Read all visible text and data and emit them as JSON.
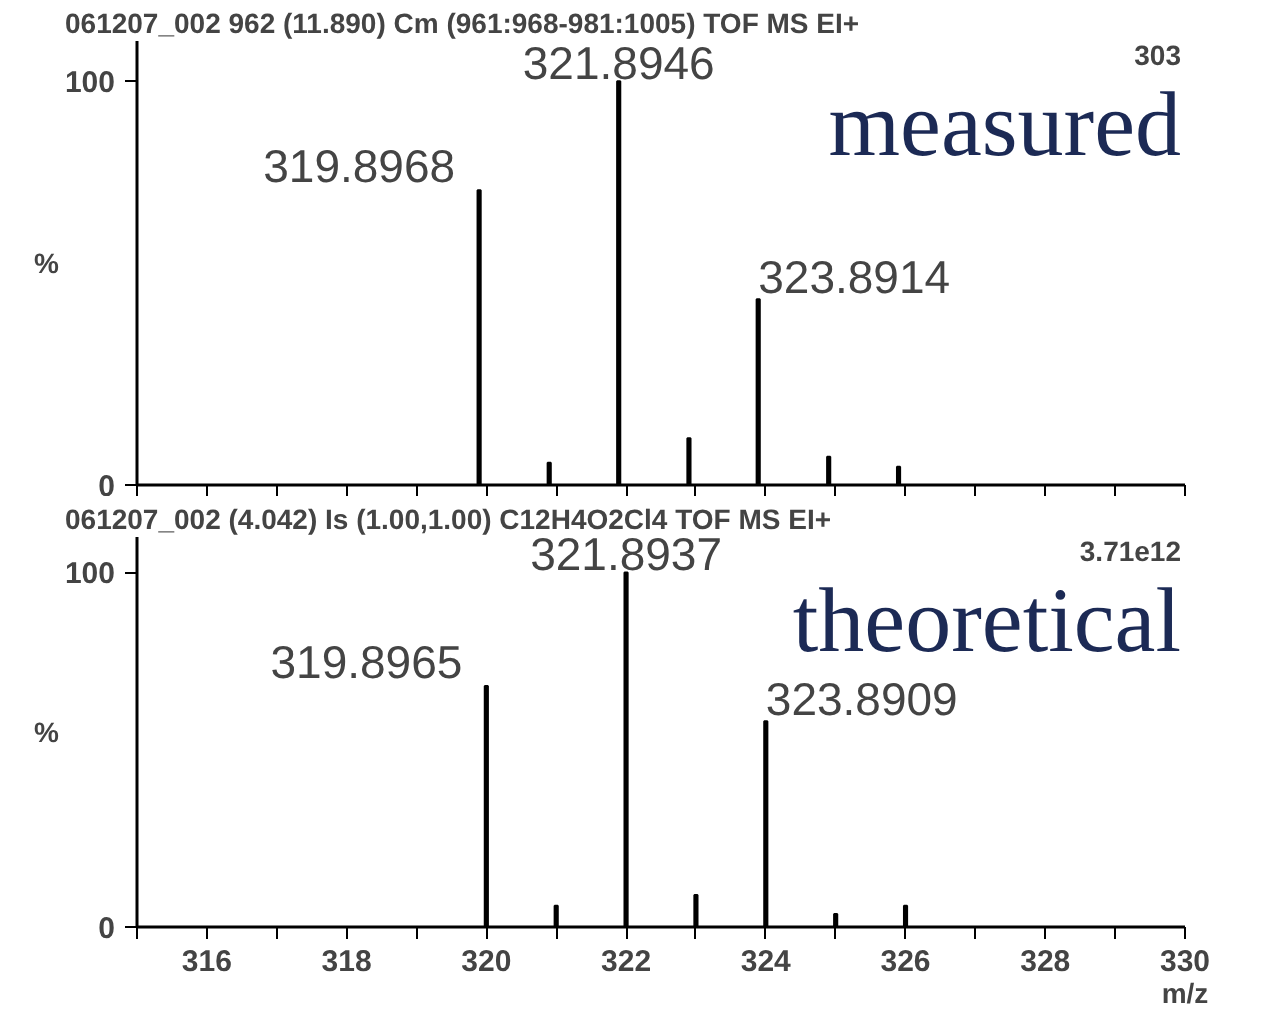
{
  "chart_data": [
    {
      "type": "bar",
      "title": "061207_002 962 (11.890) Cm (961:968-981:1005)  TOF MS EI+",
      "ylabel": "%",
      "x": [
        319.8968,
        320.9,
        321.8946,
        322.9,
        323.8914,
        324.9,
        325.9
      ],
      "values": [
        73,
        5.5,
        100,
        11.6,
        46,
        7,
        4.5
      ],
      "color": "#000000",
      "xlim": [
        315,
        330
      ],
      "xticks": [
        {
          "value": 315,
          "label": null
        },
        {
          "value": 316,
          "label": null
        },
        {
          "value": 317,
          "label": null
        },
        {
          "value": 318,
          "label": null
        },
        {
          "value": 319,
          "label": null
        },
        {
          "value": 320,
          "label": null
        },
        {
          "value": 321,
          "label": null
        },
        {
          "value": 322,
          "label": null
        },
        {
          "value": 323,
          "label": null
        },
        {
          "value": 324,
          "label": null
        },
        {
          "value": 325,
          "label": null
        },
        {
          "value": 326,
          "label": null
        },
        {
          "value": 327,
          "label": null
        },
        {
          "value": 328,
          "label": null
        },
        {
          "value": 329,
          "label": null
        },
        {
          "value": 330,
          "label": null
        }
      ],
      "ylim": [
        0,
        110
      ],
      "yticks": [
        0,
        100
      ],
      "tick_labels": "y",
      "grid": false,
      "annotations": [
        {
          "text": "319.8968",
          "x": 319.8968,
          "y": 73
        },
        {
          "text": "321.8946",
          "x": 321.8946,
          "y": 100
        },
        {
          "text": "323.8914",
          "x": 323.8914,
          "y": 46
        },
        "303",
        "measured"
      ]
    },
    {
      "type": "bar",
      "title": "061207_002  (4.042) Is (1.00,1.00) C12H4O2Cl4     TOF MS EI+",
      "ylabel": "%",
      "xlabel": "m/z",
      "x": [
        320,
        321,
        322,
        323,
        324,
        325,
        326
      ],
      "values": [
        68,
        6,
        100,
        9,
        58,
        3.7,
        6
      ],
      "color": "#000000",
      "xlim": [
        315,
        330
      ],
      "xticks": [
        {
          "value": 315,
          "label": null
        },
        {
          "value": 316,
          "label": "316"
        },
        {
          "value": 317,
          "label": null
        },
        {
          "value": 318,
          "label": "318"
        },
        {
          "value": 319,
          "label": null
        },
        {
          "value": 320,
          "label": "320"
        },
        {
          "value": 321,
          "label": null
        },
        {
          "value": 322,
          "label": "322"
        },
        {
          "value": 323,
          "label": null
        },
        {
          "value": 324,
          "label": "324"
        },
        {
          "value": 325,
          "label": null
        },
        {
          "value": 326,
          "label": "326"
        },
        {
          "value": 327,
          "label": null
        },
        {
          "value": 328,
          "label": "328"
        },
        {
          "value": 329,
          "label": null
        },
        {
          "value": 330,
          "label": "330"
        }
      ],
      "ylim": [
        0,
        110
      ],
      "yticks": [
        0,
        100
      ],
      "grid": false,
      "annotations": [
        {
          "text": "319.8965",
          "x": 320,
          "y": 68
        },
        {
          "text": "321.8937",
          "x": 322,
          "y": 100
        },
        {
          "text": "323.8909",
          "x": 324,
          "y": 58
        },
        "3.71e12",
        "theoretical"
      ]
    }
  ]
}
